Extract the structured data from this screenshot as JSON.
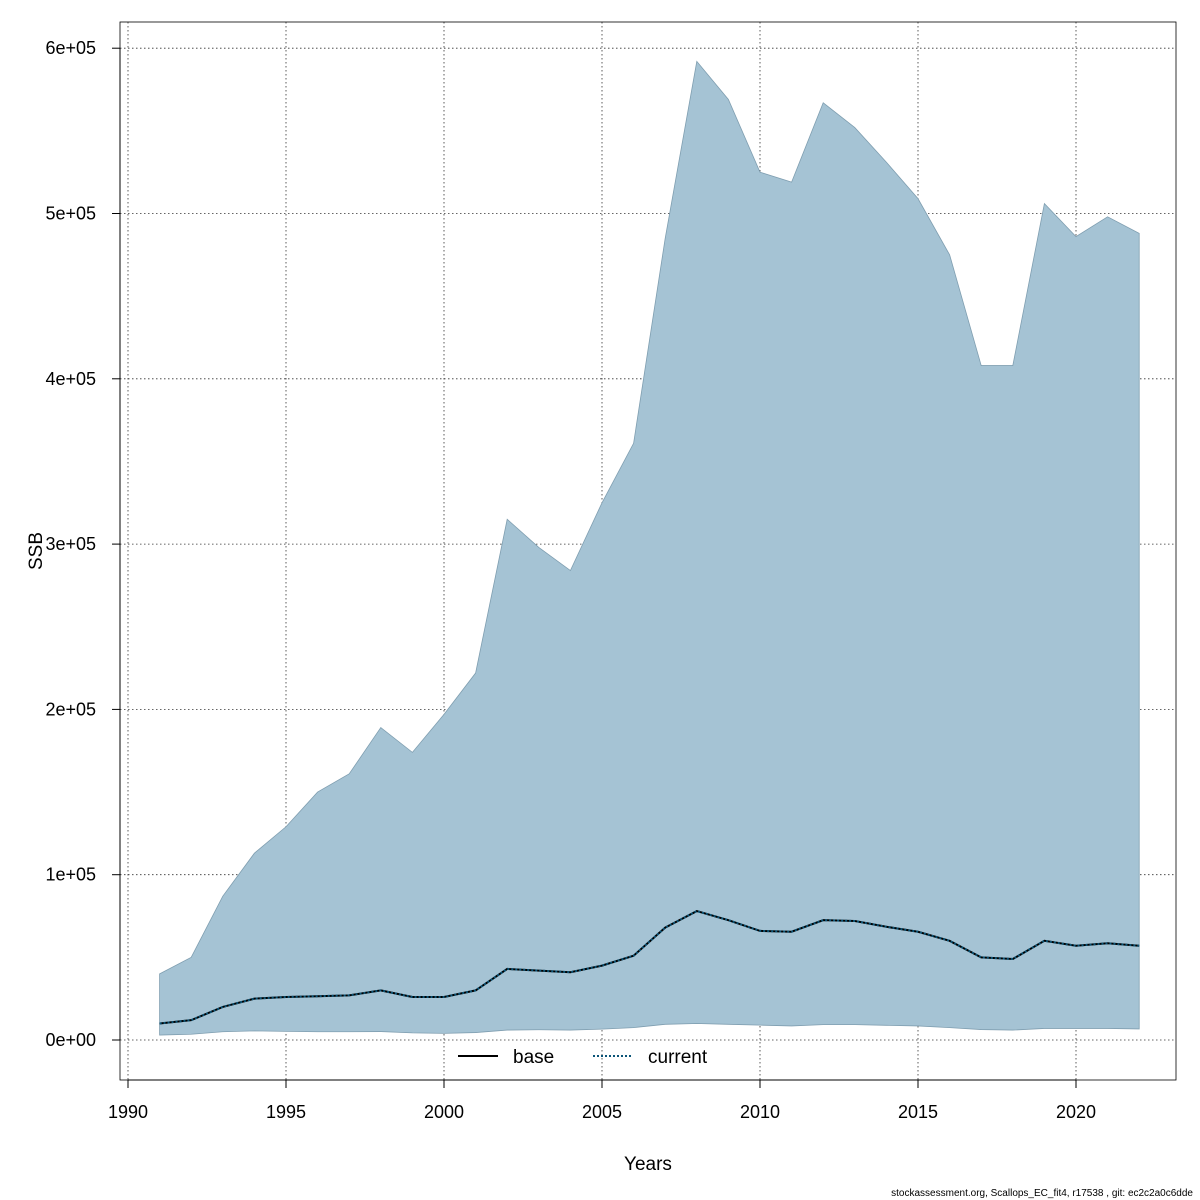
{
  "chart_data": {
    "type": "area",
    "xlabel": "Years",
    "ylabel": "SSB",
    "xlim": [
      1990,
      2022
    ],
    "ylim": [
      0,
      600000
    ],
    "x_ticks": [
      1990,
      1995,
      2000,
      2005,
      2010,
      2015,
      2020
    ],
    "y_ticks": [
      0,
      100000,
      200000,
      300000,
      400000,
      500000,
      600000
    ],
    "y_tick_labels": [
      "0e+00",
      "1e+05",
      "2e+05",
      "3e+05",
      "4e+05",
      "5e+05",
      "6e+05"
    ],
    "grid": true,
    "legend_position": "bottom",
    "colors": {
      "band": "#a5c3d4",
      "band_edge": "#7f9eb0",
      "current": "#0b5578",
      "base": "#000000"
    },
    "years": [
      1991,
      1992,
      1993,
      1994,
      1995,
      1996,
      1997,
      1998,
      1999,
      2000,
      2001,
      2002,
      2003,
      2004,
      2005,
      2006,
      2007,
      2008,
      2009,
      2010,
      2011,
      2012,
      2013,
      2014,
      2015,
      2016,
      2017,
      2018,
      2019,
      2020,
      2021,
      2022
    ],
    "series": [
      {
        "name": "base",
        "style": "solid",
        "values": [
          10000,
          12000,
          20000,
          25000,
          26000,
          26500,
          27000,
          30000,
          26000,
          26000,
          30000,
          43000,
          42000,
          41000,
          45000,
          51000,
          68000,
          78000,
          72500,
          66000,
          65500,
          72500,
          72000,
          68500,
          65500,
          60000,
          50000,
          49000,
          60000,
          57000,
          58500,
          57000
        ]
      },
      {
        "name": "current",
        "style": "dotted",
        "values": [
          10000,
          12000,
          20000,
          25000,
          26000,
          26500,
          27000,
          30000,
          26000,
          26000,
          30000,
          43000,
          42000,
          41000,
          45000,
          51000,
          68000,
          78000,
          72500,
          66000,
          65500,
          72500,
          72000,
          68500,
          65500,
          60000,
          50000,
          49000,
          60000,
          57000,
          58500,
          57000
        ]
      }
    ],
    "band": {
      "upper": [
        40000,
        50000,
        87000,
        113000,
        129000,
        150000,
        161000,
        189000,
        174000,
        197000,
        222000,
        315000,
        298000,
        284000,
        325000,
        361000,
        485000,
        592000,
        569000,
        525000,
        519000,
        567000,
        552000,
        531000,
        509000,
        475000,
        408000,
        408000,
        506000,
        486000,
        498000,
        488000
      ],
      "lower": [
        3000,
        3500,
        5000,
        5500,
        5200,
        5000,
        5000,
        5100,
        4300,
        4000,
        4500,
        6000,
        6200,
        6000,
        6600,
        7500,
        9500,
        10000,
        9500,
        9000,
        8500,
        9300,
        9300,
        8900,
        8500,
        7500,
        6300,
        6000,
        7000,
        7000,
        7000,
        6700
      ]
    }
  },
  "legend": {
    "items": [
      "base",
      "current"
    ]
  },
  "footer": "stockassessment.org, Scallops_EC_fit4, r17538 , git: ec2c2a0c6dde"
}
